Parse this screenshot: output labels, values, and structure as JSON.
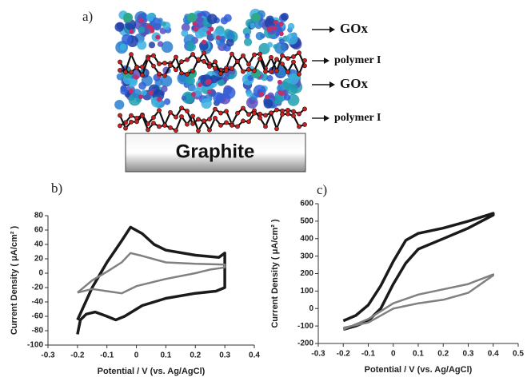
{
  "diagram": {
    "label": "a)",
    "layers": [
      "GOx",
      "polymer I",
      "GOx",
      "polymer I"
    ],
    "substrate": "Graphite"
  },
  "chart_data": [
    {
      "type": "line",
      "panel_label": "b)",
      "x_label": "Potential / V (vs. Ag/AgCl)",
      "y_label": "Current Density ( μA/cm² )",
      "xlim": [
        -0.3,
        0.4
      ],
      "xticks": [
        -0.3,
        -0.2,
        -0.1,
        0,
        0.1,
        0.2,
        0.3,
        0.4
      ],
      "ylim": [
        -100,
        80
      ],
      "yticks": [
        -100,
        -80,
        -60,
        -40,
        -20,
        0,
        20,
        40,
        60,
        80
      ],
      "series": [
        {
          "color": "#1a1a1a",
          "x": [
            -0.2,
            -0.15,
            -0.1,
            -0.05,
            -0.02,
            0.02,
            0.06,
            0.1,
            0.2,
            0.28,
            0.3,
            0.3,
            0.27,
            0.2,
            0.1,
            0.02,
            -0.04,
            -0.07,
            -0.1,
            -0.14,
            -0.17,
            -0.19,
            -0.2
          ],
          "values": [
            -65,
            -20,
            15,
            45,
            64,
            55,
            40,
            32,
            25,
            22,
            28,
            -20,
            -25,
            -28,
            -35,
            -45,
            -60,
            -65,
            -60,
            -54,
            -57,
            -65,
            -85
          ]
        },
        {
          "color": "#808080",
          "x": [
            -0.2,
            -0.15,
            -0.1,
            -0.05,
            -0.02,
            0.02,
            0.1,
            0.2,
            0.3,
            0.3,
            0.25,
            0.2,
            0.1,
            0,
            -0.05,
            -0.1,
            -0.15,
            -0.2
          ],
          "values": [
            -27,
            -10,
            2,
            15,
            28,
            24,
            15,
            13,
            12,
            8,
            5,
            0,
            -8,
            -18,
            -28,
            -25,
            -22,
            -27
          ]
        }
      ]
    },
    {
      "type": "line",
      "panel_label": "c)",
      "x_label": "Potential / V (vs. Ag/AgCl)",
      "y_label": "Current Density ( μA/cm² )",
      "xlim": [
        -0.3,
        0.5
      ],
      "xticks": [
        -0.3,
        -0.2,
        -0.1,
        0,
        0.1,
        0.2,
        0.3,
        0.4,
        0.5
      ],
      "ylim": [
        -200,
        600
      ],
      "yticks": [
        -200,
        -100,
        0,
        100,
        200,
        300,
        400,
        500,
        600
      ],
      "series": [
        {
          "color": "#1a1a1a",
          "x": [
            -0.2,
            -0.15,
            -0.1,
            -0.05,
            0,
            0.05,
            0.1,
            0.2,
            0.3,
            0.4,
            0.4,
            0.3,
            0.2,
            0.1,
            0.05,
            0,
            -0.05,
            -0.1,
            -0.15,
            -0.2
          ],
          "values": [
            -70,
            -40,
            20,
            130,
            270,
            390,
            430,
            460,
            500,
            545,
            535,
            460,
            400,
            340,
            260,
            140,
            0,
            -70,
            -100,
            -120
          ]
        },
        {
          "color": "#808080",
          "x": [
            -0.2,
            -0.1,
            0,
            0.1,
            0.2,
            0.3,
            0.4,
            0.4,
            0.3,
            0.2,
            0.1,
            0,
            -0.1,
            -0.2
          ],
          "values": [
            -120,
            -60,
            30,
            80,
            110,
            140,
            195,
            190,
            90,
            50,
            30,
            0,
            -80,
            -110
          ]
        }
      ]
    }
  ]
}
